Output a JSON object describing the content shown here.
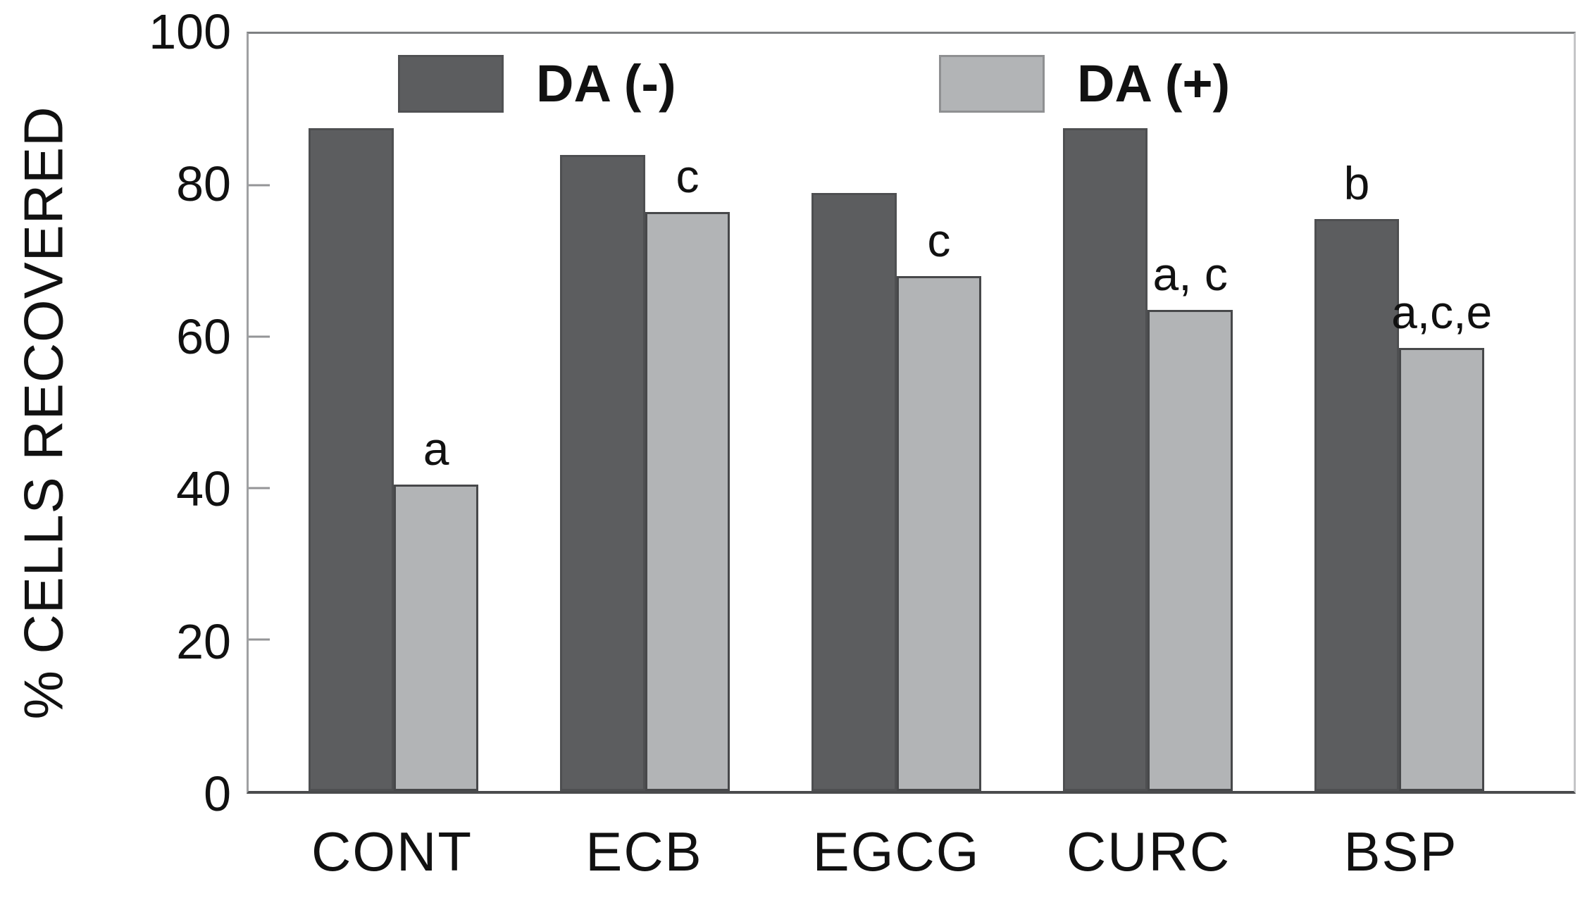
{
  "chart_data": {
    "type": "bar",
    "title": "",
    "ylabel": "% CELLS RECOVERED",
    "xlabel": "",
    "ylim": [
      0,
      100
    ],
    "yticks": [
      0,
      20,
      40,
      60,
      80,
      100
    ],
    "inner_tickmarks": [
      20,
      40,
      60,
      80
    ],
    "grid": false,
    "legend_position": "top-inside",
    "categories": [
      "CONT",
      "ECB",
      "EGCG",
      "CURC",
      "BSP"
    ],
    "series": [
      {
        "name": "DA (-)",
        "color": "#5c5d5f",
        "values": [
          87.5,
          84,
          79,
          87.5,
          75.5
        ],
        "annotations": [
          "",
          "",
          "",
          "",
          "b"
        ]
      },
      {
        "name": "DA (+)",
        "color": "#b2b4b6",
        "values": [
          40.5,
          76.5,
          68,
          63.5,
          58.5
        ],
        "annotations": [
          "a",
          "c",
          "c",
          "a, c",
          "a,c,e"
        ]
      }
    ]
  },
  "colors": {
    "dark_series": "#5c5d5f",
    "light_series": "#b2b4b6",
    "axis_bottom": "#4a4b4d",
    "axis_left": "#9fa0a2",
    "box_top": "#7e8082",
    "box_right": "#c4c5c7",
    "tick": "#949597",
    "text": "#111111"
  }
}
